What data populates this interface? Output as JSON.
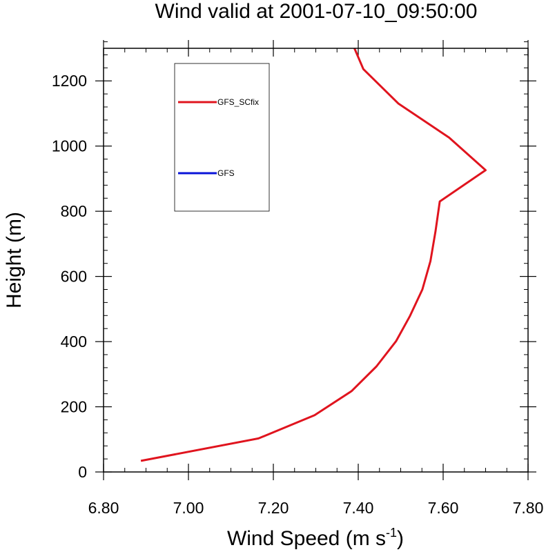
{
  "chart_data": {
    "type": "line",
    "title": "Wind valid at 2001-07-10_09:50:00",
    "xlabel": "Wind Speed (m s",
    "xlabel_superscript": "-1",
    "xlabel_suffix": ")",
    "ylabel": "Height (m)",
    "xlim": [
      6.8,
      7.8
    ],
    "ylim": [
      0,
      1300
    ],
    "x_ticks": [
      6.8,
      7.0,
      7.2,
      7.4,
      7.6,
      7.8
    ],
    "x_tick_labels": [
      "6.80",
      "7.00",
      "7.20",
      "7.40",
      "7.60",
      "7.80"
    ],
    "x_minor_step": 0.05,
    "y_ticks": [
      0,
      200,
      400,
      600,
      800,
      1000,
      1200
    ],
    "y_tick_labels": [
      "0",
      "200",
      "400",
      "600",
      "800",
      "1000",
      "1200"
    ],
    "y_minor_step": 40,
    "grid": false,
    "legend_position": "top-left",
    "series": [
      {
        "name": "GFS_SCfix",
        "color": "#e0141e",
        "x": [
          6.888,
          7.165,
          7.297,
          7.384,
          7.443,
          7.489,
          7.522,
          7.551,
          7.57,
          7.582,
          7.592,
          7.7,
          7.614,
          7.495,
          7.412,
          7.391
        ],
        "y": [
          34,
          103,
          174,
          248,
          324,
          401,
          479,
          560,
          647,
          738,
          830,
          926,
          1026,
          1130,
          1236,
          1300
        ]
      },
      {
        "name": "GFS",
        "color": "#0a14d8",
        "x": [],
        "y": []
      }
    ]
  }
}
